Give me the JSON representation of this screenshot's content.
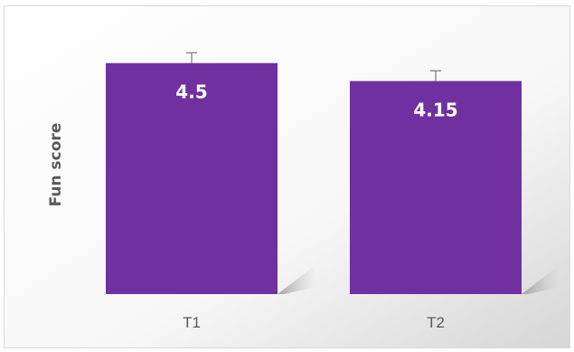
{
  "chart_data": {
    "type": "bar",
    "title": "",
    "xlabel": "",
    "ylabel": "Fun score",
    "categories": [
      "T1",
      "T2"
    ],
    "values": [
      4.5,
      4.15
    ],
    "value_labels": [
      "4.5",
      "4.15"
    ],
    "error": [
      0.2,
      0.2
    ],
    "ylim": [
      0,
      5.2
    ],
    "grid": false,
    "legend": "none",
    "colors": {
      "bar": "#7030A0",
      "error_bar": "#808080",
      "axis_text": "#595959",
      "value_text": "#ffffff",
      "plot_border": "#d9d9d9"
    }
  }
}
